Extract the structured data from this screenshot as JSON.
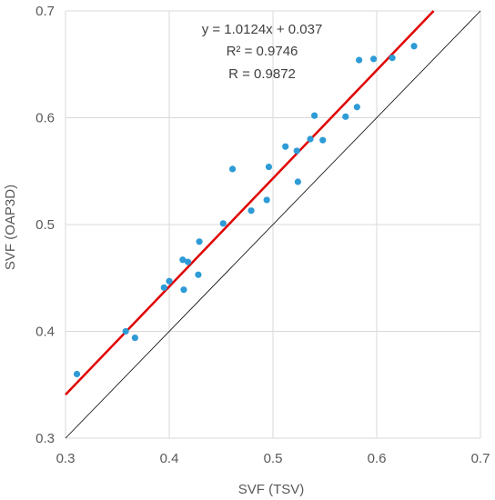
{
  "chart_data": {
    "type": "scatter",
    "xlabel": "SVF (TSV)",
    "ylabel": "SVF (OAP3D)",
    "xlim": [
      0.3,
      0.7
    ],
    "ylim": [
      0.3,
      0.7
    ],
    "x_ticks": [
      "0.3",
      "0.4",
      "0.5",
      "0.6",
      "0.7"
    ],
    "y_ticks": [
      "0.3",
      "0.4",
      "0.5",
      "0.6",
      "0.7"
    ],
    "grid": true,
    "colors": {
      "points": "#2E9BD6",
      "fit_line": "#E00000",
      "identity_line": "#000000",
      "grid": "#D9D9D9"
    },
    "annotations": {
      "equation": "y = 1.0124x + 0.037",
      "r_squared": "R² = 0.9746",
      "r": "R = 0.9872"
    },
    "fit_line": {
      "slope": 1.0124,
      "intercept": 0.037
    },
    "identity_line": true,
    "points": [
      {
        "x": 0.311,
        "y": 0.36
      },
      {
        "x": 0.358,
        "y": 0.4
      },
      {
        "x": 0.367,
        "y": 0.394
      },
      {
        "x": 0.395,
        "y": 0.441
      },
      {
        "x": 0.4,
        "y": 0.447
      },
      {
        "x": 0.413,
        "y": 0.467
      },
      {
        "x": 0.414,
        "y": 0.439
      },
      {
        "x": 0.418,
        "y": 0.465
      },
      {
        "x": 0.428,
        "y": 0.453
      },
      {
        "x": 0.429,
        "y": 0.484
      },
      {
        "x": 0.452,
        "y": 0.501
      },
      {
        "x": 0.461,
        "y": 0.552
      },
      {
        "x": 0.479,
        "y": 0.513
      },
      {
        "x": 0.494,
        "y": 0.523
      },
      {
        "x": 0.496,
        "y": 0.554
      },
      {
        "x": 0.512,
        "y": 0.573
      },
      {
        "x": 0.523,
        "y": 0.569
      },
      {
        "x": 0.524,
        "y": 0.54
      },
      {
        "x": 0.536,
        "y": 0.58
      },
      {
        "x": 0.54,
        "y": 0.602
      },
      {
        "x": 0.548,
        "y": 0.579
      },
      {
        "x": 0.57,
        "y": 0.601
      },
      {
        "x": 0.581,
        "y": 0.61
      },
      {
        "x": 0.583,
        "y": 0.654
      },
      {
        "x": 0.597,
        "y": 0.655
      },
      {
        "x": 0.615,
        "y": 0.656
      },
      {
        "x": 0.636,
        "y": 0.667
      }
    ]
  }
}
